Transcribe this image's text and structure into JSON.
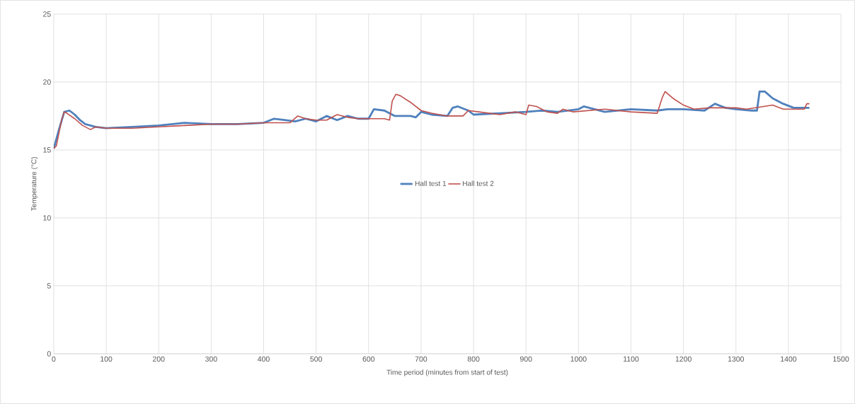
{
  "chart_data": {
    "type": "line",
    "xlabel": "Time period (minutes from start of test)",
    "ylabel": "Temperature (°C)",
    "xlim": [
      0,
      1500
    ],
    "xticks": [
      0,
      100,
      200,
      300,
      400,
      500,
      600,
      700,
      800,
      900,
      1000,
      1100,
      1200,
      1300,
      1400,
      1500
    ],
    "ylim": [
      0,
      25
    ],
    "yticks": [
      0,
      5,
      10,
      15,
      20,
      25
    ],
    "grid": true,
    "legend": "center",
    "marker": "none",
    "line_style": "solid",
    "series": [
      {
        "name": "Hall test 1",
        "color": "#4f81bd",
        "x": [
          0,
          10,
          20,
          30,
          40,
          50,
          60,
          70,
          80,
          100,
          150,
          200,
          250,
          300,
          350,
          400,
          420,
          440,
          460,
          480,
          500,
          520,
          540,
          560,
          580,
          600,
          610,
          630,
          650,
          680,
          690,
          700,
          720,
          750,
          760,
          770,
          790,
          800,
          850,
          900,
          930,
          960,
          1000,
          1010,
          1050,
          1100,
          1150,
          1170,
          1200,
          1240,
          1260,
          1280,
          1300,
          1330,
          1340,
          1345,
          1355,
          1370,
          1390,
          1410,
          1440
        ],
        "values": [
          15.1,
          16.5,
          17.8,
          17.9,
          17.6,
          17.2,
          16.9,
          16.8,
          16.7,
          16.6,
          16.7,
          16.8,
          17.0,
          16.9,
          16.9,
          17.0,
          17.3,
          17.2,
          17.1,
          17.3,
          17.1,
          17.5,
          17.2,
          17.5,
          17.3,
          17.3,
          18.0,
          17.9,
          17.5,
          17.5,
          17.4,
          17.8,
          17.6,
          17.5,
          18.1,
          18.2,
          17.9,
          17.6,
          17.7,
          17.8,
          17.9,
          17.8,
          18.0,
          18.2,
          17.8,
          18.0,
          17.9,
          18.0,
          18.0,
          17.9,
          18.4,
          18.1,
          18.0,
          17.9,
          17.9,
          19.3,
          19.3,
          18.8,
          18.4,
          18.1,
          18.1
        ]
      },
      {
        "name": "Hall test 2",
        "color": "#c0504d",
        "x": [
          0,
          5,
          15,
          20,
          25,
          40,
          55,
          70,
          80,
          100,
          150,
          200,
          250,
          300,
          350,
          400,
          450,
          465,
          480,
          500,
          520,
          540,
          560,
          580,
          630,
          640,
          645,
          652,
          660,
          680,
          700,
          720,
          750,
          780,
          790,
          810,
          850,
          880,
          900,
          905,
          920,
          940,
          960,
          970,
          990,
          1050,
          1100,
          1150,
          1160,
          1165,
          1180,
          1200,
          1220,
          1250,
          1300,
          1320,
          1370,
          1390,
          1430,
          1435,
          1440
        ],
        "values": [
          15.1,
          15.3,
          17.2,
          17.8,
          17.7,
          17.3,
          16.8,
          16.5,
          16.7,
          16.6,
          16.6,
          16.7,
          16.8,
          16.9,
          16.9,
          17.0,
          17.0,
          17.5,
          17.3,
          17.2,
          17.2,
          17.6,
          17.4,
          17.3,
          17.3,
          17.2,
          18.6,
          19.1,
          19.0,
          18.5,
          17.9,
          17.7,
          17.5,
          17.5,
          17.9,
          17.8,
          17.6,
          17.8,
          17.6,
          18.3,
          18.2,
          17.8,
          17.7,
          18.0,
          17.8,
          18.0,
          17.8,
          17.7,
          18.9,
          19.3,
          18.8,
          18.3,
          18.0,
          18.1,
          18.1,
          18.0,
          18.3,
          18.0,
          18.0,
          18.4,
          18.4
        ]
      }
    ]
  }
}
